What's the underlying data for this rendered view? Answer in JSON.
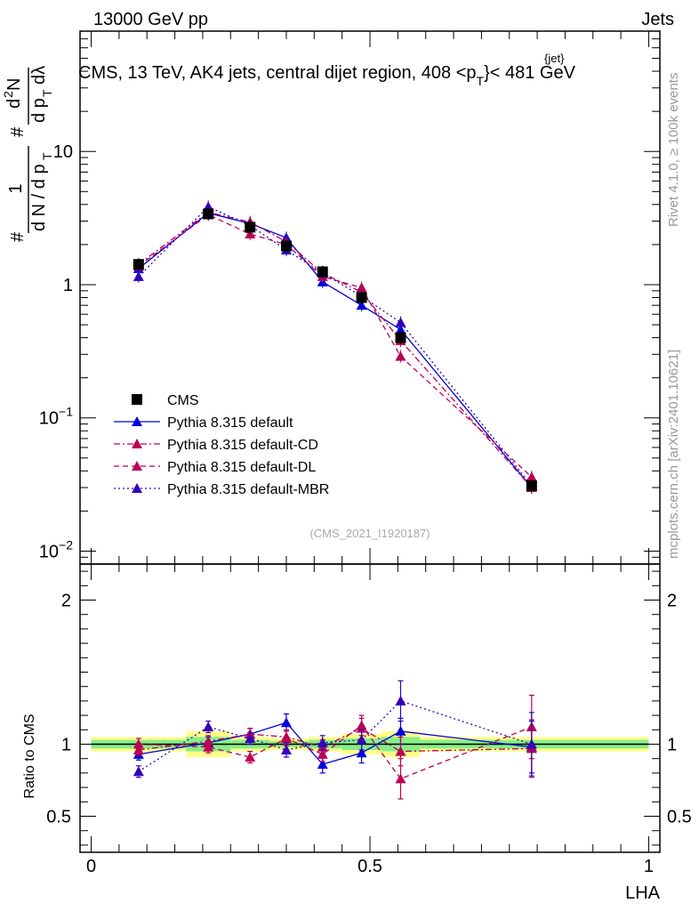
{
  "header": {
    "left": "13000 GeV pp",
    "right": "Jets",
    "title": "CMS, 13 TeV, AK4 jets, central dijet region, 408 <p",
    "title_sup": "{jet}",
    "title_sub": "T",
    "title_end": "}< 481 GeV"
  },
  "side_labels": {
    "rivet": "Rivet 4.1.0, ≥ 100k events",
    "mcplots": "mcplots.cern.ch [arXiv:2401.10621]"
  },
  "watermark": "(CMS_2021_I1920187)",
  "legend": [
    {
      "name": "CMS",
      "color": "#000000",
      "style": "solid",
      "marker": "square"
    },
    {
      "name": "Pythia 8.315 default",
      "color": "#0000dd",
      "style": "solid",
      "marker": "triangle"
    },
    {
      "name": "Pythia 8.315 default-CD",
      "color": "#bb0055",
      "style": "dashdot",
      "marker": "triangle"
    },
    {
      "name": "Pythia 8.315 default-DL",
      "color": "#bb0055",
      "style": "dashed",
      "marker": "triangle"
    },
    {
      "name": "Pythia 8.315 default-MBR",
      "color": "#3300bb",
      "style": "dotted",
      "marker": "triangle"
    }
  ],
  "chart_data": [
    {
      "type": "line",
      "panel": "main",
      "yscale": "log",
      "ylabel": "1 / dN / dp_T # d²N / dp_T # dλ",
      "xlim": [
        -0.02,
        1.02
      ],
      "ylim": [
        0.008,
        80
      ],
      "yticks": [
        {
          "value": 0.01,
          "label": "10",
          "exp": "−2"
        },
        {
          "value": 0.1,
          "label": "10",
          "exp": "−1"
        },
        {
          "value": 1,
          "label": "1",
          "exp": ""
        },
        {
          "value": 10,
          "label": "10",
          "exp": ""
        }
      ],
      "x": [
        0.085,
        0.21,
        0.285,
        0.35,
        0.415,
        0.485,
        0.555,
        0.79
      ],
      "data": {
        "name": "CMS",
        "values": [
          1.42,
          3.4,
          2.7,
          1.95,
          1.25,
          0.8,
          0.4,
          0.031
        ]
      },
      "series": [
        {
          "name": "Pythia 8.315 default",
          "values": [
            1.32,
            3.45,
            2.88,
            2.25,
            1.05,
            0.7,
            0.46,
            0.03
          ]
        },
        {
          "name": "Pythia 8.315 default-CD",
          "values": [
            1.42,
            3.5,
            2.95,
            2.1,
            1.22,
            0.88,
            0.38,
            0.03
          ]
        },
        {
          "name": "Pythia 8.315 default-DL",
          "values": [
            1.38,
            3.35,
            2.4,
            2.0,
            1.15,
            0.95,
            0.29,
            0.036
          ]
        },
        {
          "name": "Pythia 8.315 default-MBR",
          "values": [
            1.15,
            3.85,
            2.78,
            1.82,
            1.22,
            0.82,
            0.52,
            0.031
          ]
        }
      ]
    },
    {
      "type": "line",
      "panel": "ratio",
      "yscale": "linear",
      "ylabel": "Ratio to CMS",
      "xlabel": "LHA",
      "xlim": [
        -0.02,
        1.02
      ],
      "ylim": [
        0.25,
        2.25
      ],
      "yticks": [
        {
          "value": 0.5,
          "label": "0.5"
        },
        {
          "value": 1,
          "label": "1"
        },
        {
          "value": 2,
          "label": "2"
        }
      ],
      "xticks": [
        {
          "value": 0,
          "label": "0"
        },
        {
          "value": 0.5,
          "label": "0.5"
        },
        {
          "value": 1,
          "label": "1"
        }
      ],
      "x": [
        0.085,
        0.21,
        0.285,
        0.35,
        0.415,
        0.485,
        0.555,
        0.79
      ],
      "bands": [
        {
          "x0": 0.0,
          "x1": 0.17,
          "outer": [
            0.95,
            1.05
          ],
          "inner": [
            0.97,
            1.03
          ]
        },
        {
          "x0": 0.17,
          "x1": 0.25,
          "outer": [
            0.91,
            1.09
          ],
          "inner": [
            0.95,
            1.05
          ]
        },
        {
          "x0": 0.25,
          "x1": 0.32,
          "outer": [
            0.95,
            1.05
          ],
          "inner": [
            0.97,
            1.03
          ]
        },
        {
          "x0": 0.32,
          "x1": 0.39,
          "outer": [
            0.96,
            1.04
          ],
          "inner": [
            0.98,
            1.02
          ]
        },
        {
          "x0": 0.39,
          "x1": 0.45,
          "outer": [
            0.95,
            1.05
          ],
          "inner": [
            0.97,
            1.03
          ]
        },
        {
          "x0": 0.45,
          "x1": 0.52,
          "outer": [
            0.93,
            1.07
          ],
          "inner": [
            0.96,
            1.04
          ]
        },
        {
          "x0": 0.52,
          "x1": 0.59,
          "outer": [
            0.91,
            1.09
          ],
          "inner": [
            0.95,
            1.05
          ]
        },
        {
          "x0": 0.59,
          "x1": 1.0,
          "outer": [
            0.95,
            1.05
          ],
          "inner": [
            0.97,
            1.03
          ]
        }
      ],
      "series": [
        {
          "name": "Pythia 8.315 default",
          "values": [
            0.93,
            1.01,
            1.07,
            1.15,
            0.86,
            0.94,
            1.09,
            0.98
          ],
          "err": [
            0.04,
            0.04,
            0.04,
            0.06,
            0.06,
            0.07,
            0.09,
            0.18
          ]
        },
        {
          "name": "Pythia 8.315 default-CD",
          "values": [
            0.96,
            1.02,
            1.07,
            1.05,
            0.98,
            1.11,
            0.95,
            0.97
          ],
          "err": [
            0.04,
            0.04,
            0.04,
            0.05,
            0.05,
            0.07,
            0.1,
            0.2
          ]
        },
        {
          "name": "Pythia 8.315 default-DL",
          "values": [
            1.0,
            0.98,
            0.91,
            1.04,
            0.93,
            1.13,
            0.76,
            1.12
          ],
          "err": [
            0.04,
            0.04,
            0.04,
            0.05,
            0.05,
            0.07,
            0.14,
            0.22
          ]
        },
        {
          "name": "Pythia 8.315 default-MBR",
          "values": [
            0.81,
            1.12,
            1.04,
            0.96,
            1.01,
            1.03,
            1.3,
            1.0
          ],
          "err": [
            0.04,
            0.04,
            0.04,
            0.05,
            0.05,
            0.07,
            0.14,
            0.22
          ]
        }
      ]
    }
  ]
}
